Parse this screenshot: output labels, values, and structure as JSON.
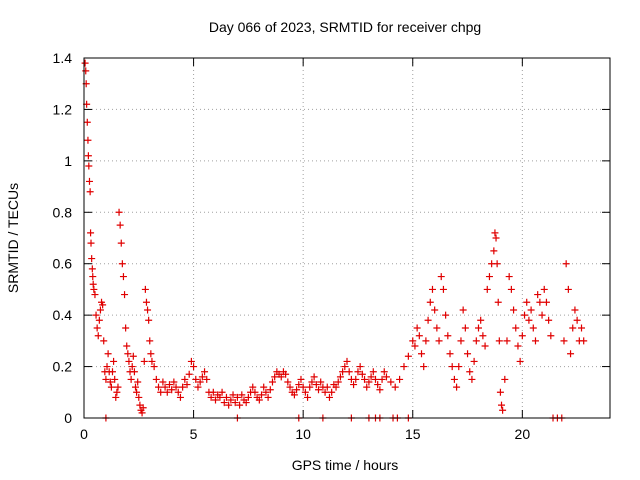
{
  "chart_data": {
    "type": "scatter",
    "title": "Day 066 of 2023, SRMTID for receiver chpg",
    "xlabel": "GPS time / hours",
    "ylabel": "SRMTID / TECUs",
    "xlim": [
      0,
      24
    ],
    "ylim": [
      0,
      1.4
    ],
    "xticks": [
      0,
      5,
      10,
      15,
      20
    ],
    "yticks": [
      0,
      0.2,
      0.4,
      0.6,
      0.8,
      1,
      1.2,
      1.4
    ],
    "xtick_labels": [
      "0",
      "5",
      "10",
      "15",
      "20"
    ],
    "ytick_labels": [
      "0",
      "0.2",
      "0.4",
      "0.6",
      "0.8",
      "1",
      "1.2",
      "1.4"
    ],
    "grid": true,
    "marker": "+",
    "color": "#e00000",
    "series": [
      {
        "name": "SRMTID",
        "points": [
          [
            0.05,
            1.38
          ],
          [
            0.08,
            1.35
          ],
          [
            0.1,
            1.3
          ],
          [
            0.12,
            1.22
          ],
          [
            0.15,
            1.15
          ],
          [
            0.18,
            1.08
          ],
          [
            0.2,
            1.02
          ],
          [
            0.22,
            0.98
          ],
          [
            0.25,
            0.92
          ],
          [
            0.28,
            0.88
          ],
          [
            0.3,
            0.72
          ],
          [
            0.32,
            0.68
          ],
          [
            0.35,
            0.62
          ],
          [
            0.38,
            0.58
          ],
          [
            0.4,
            0.55
          ],
          [
            0.42,
            0.52
          ],
          [
            0.45,
            0.5
          ],
          [
            0.5,
            0.48
          ],
          [
            0.55,
            0.4
          ],
          [
            0.6,
            0.35
          ],
          [
            0.65,
            0.32
          ],
          [
            0.7,
            0.38
          ],
          [
            0.75,
            0.42
          ],
          [
            0.8,
            0.45
          ],
          [
            0.85,
            0.44
          ],
          [
            0.9,
            0.3
          ],
          [
            0.95,
            0.18
          ],
          [
            1.0,
            0.15
          ],
          [
            1.05,
            0.2
          ],
          [
            1.1,
            0.25
          ],
          [
            1.15,
            0.18
          ],
          [
            1.2,
            0.14
          ],
          [
            1.25,
            0.12
          ],
          [
            1.3,
            0.18
          ],
          [
            1.35,
            0.22
          ],
          [
            1.4,
            0.15
          ],
          [
            1.45,
            0.08
          ],
          [
            1.5,
            0.1
          ],
          [
            1.55,
            0.12
          ],
          [
            1.6,
            0.8
          ],
          [
            1.65,
            0.75
          ],
          [
            1.7,
            0.68
          ],
          [
            1.75,
            0.6
          ],
          [
            1.8,
            0.55
          ],
          [
            1.85,
            0.48
          ],
          [
            1.9,
            0.35
          ],
          [
            1.95,
            0.28
          ],
          [
            2.0,
            0.25
          ],
          [
            2.05,
            0.22
          ],
          [
            2.1,
            0.18
          ],
          [
            2.15,
            0.15
          ],
          [
            2.2,
            0.2
          ],
          [
            2.25,
            0.24
          ],
          [
            2.3,
            0.18
          ],
          [
            2.35,
            0.12
          ],
          [
            2.4,
            0.1
          ],
          [
            2.45,
            0.14
          ],
          [
            2.5,
            0.08
          ],
          [
            2.55,
            0.05
          ],
          [
            2.6,
            0.03
          ],
          [
            2.65,
            0.02
          ],
          [
            2.7,
            0.04
          ],
          [
            2.75,
            0.22
          ],
          [
            2.8,
            0.5
          ],
          [
            2.85,
            0.45
          ],
          [
            2.9,
            0.42
          ],
          [
            2.95,
            0.38
          ],
          [
            3.0,
            0.3
          ],
          [
            3.05,
            0.25
          ],
          [
            3.1,
            0.22
          ],
          [
            3.2,
            0.2
          ],
          [
            3.3,
            0.15
          ],
          [
            3.4,
            0.12
          ],
          [
            3.5,
            0.1
          ],
          [
            3.6,
            0.14
          ],
          [
            3.7,
            0.12
          ],
          [
            3.8,
            0.1
          ],
          [
            3.9,
            0.13
          ],
          [
            4.0,
            0.11
          ],
          [
            4.1,
            0.14
          ],
          [
            4.2,
            0.12
          ],
          [
            4.3,
            0.1
          ],
          [
            4.4,
            0.08
          ],
          [
            4.5,
            0.12
          ],
          [
            4.6,
            0.15
          ],
          [
            4.7,
            0.13
          ],
          [
            4.8,
            0.17
          ],
          [
            4.9,
            0.22
          ],
          [
            5.0,
            0.2
          ],
          [
            5.1,
            0.15
          ],
          [
            5.2,
            0.12
          ],
          [
            5.3,
            0.14
          ],
          [
            5.4,
            0.16
          ],
          [
            5.5,
            0.18
          ],
          [
            5.6,
            0.15
          ],
          [
            5.7,
            0.1
          ],
          [
            5.8,
            0.08
          ],
          [
            5.9,
            0.1
          ],
          [
            6.0,
            0.07
          ],
          [
            6.1,
            0.09
          ],
          [
            6.2,
            0.08
          ],
          [
            6.3,
            0.1
          ],
          [
            6.4,
            0.06
          ],
          [
            6.5,
            0.08
          ],
          [
            6.6,
            0.05
          ],
          [
            6.7,
            0.07
          ],
          [
            6.8,
            0.09
          ],
          [
            6.9,
            0.06
          ],
          [
            7.0,
            0.08
          ],
          [
            7.1,
            0.05
          ],
          [
            7.2,
            0.09
          ],
          [
            7.3,
            0.07
          ],
          [
            7.4,
            0.06
          ],
          [
            7.5,
            0.08
          ],
          [
            7.6,
            0.1
          ],
          [
            7.7,
            0.12
          ],
          [
            7.8,
            0.1
          ],
          [
            7.9,
            0.08
          ],
          [
            8.0,
            0.07
          ],
          [
            8.1,
            0.09
          ],
          [
            8.2,
            0.12
          ],
          [
            8.3,
            0.1
          ],
          [
            8.4,
            0.08
          ],
          [
            8.5,
            0.11
          ],
          [
            8.6,
            0.14
          ],
          [
            8.7,
            0.16
          ],
          [
            8.8,
            0.18
          ],
          [
            8.9,
            0.17
          ],
          [
            9.0,
            0.16
          ],
          [
            9.1,
            0.18
          ],
          [
            9.2,
            0.17
          ],
          [
            9.3,
            0.14
          ],
          [
            9.4,
            0.12
          ],
          [
            9.5,
            0.1
          ],
          [
            9.6,
            0.09
          ],
          [
            9.7,
            0.11
          ],
          [
            9.8,
            0.13
          ],
          [
            9.9,
            0.15
          ],
          [
            10.0,
            0.12
          ],
          [
            10.1,
            0.1
          ],
          [
            10.2,
            0.08
          ],
          [
            10.3,
            0.12
          ],
          [
            10.4,
            0.14
          ],
          [
            10.5,
            0.16
          ],
          [
            10.6,
            0.13
          ],
          [
            10.7,
            0.11
          ],
          [
            10.8,
            0.14
          ],
          [
            10.9,
            0.12
          ],
          [
            11.0,
            0.1
          ],
          [
            11.1,
            0.12
          ],
          [
            11.2,
            0.08
          ],
          [
            11.3,
            0.1
          ],
          [
            11.4,
            0.13
          ],
          [
            11.5,
            0.12
          ],
          [
            11.6,
            0.14
          ],
          [
            11.7,
            0.16
          ],
          [
            11.8,
            0.18
          ],
          [
            11.9,
            0.2
          ],
          [
            12.0,
            0.22
          ],
          [
            12.1,
            0.18
          ],
          [
            12.2,
            0.15
          ],
          [
            12.3,
            0.13
          ],
          [
            12.4,
            0.15
          ],
          [
            12.5,
            0.18
          ],
          [
            12.6,
            0.2
          ],
          [
            12.7,
            0.17
          ],
          [
            12.8,
            0.15
          ],
          [
            12.9,
            0.12
          ],
          [
            13.0,
            0.14
          ],
          [
            13.1,
            0.16
          ],
          [
            13.2,
            0.18
          ],
          [
            13.3,
            0.15
          ],
          [
            13.4,
            0.13
          ],
          [
            13.5,
            0.11
          ],
          [
            13.6,
            0.15
          ],
          [
            13.7,
            0.18
          ],
          [
            13.8,
            0.16
          ],
          [
            14.0,
            0.14
          ],
          [
            14.2,
            0.12
          ],
          [
            14.4,
            0.15
          ],
          [
            14.6,
            0.2
          ],
          [
            14.8,
            0.24
          ],
          [
            15.0,
            0.3
          ],
          [
            15.1,
            0.28
          ],
          [
            15.2,
            0.35
          ],
          [
            15.3,
            0.32
          ],
          [
            15.4,
            0.25
          ],
          [
            15.5,
            0.2
          ],
          [
            15.6,
            0.3
          ],
          [
            15.7,
            0.38
          ],
          [
            15.8,
            0.45
          ],
          [
            15.9,
            0.5
          ],
          [
            16.0,
            0.42
          ],
          [
            16.1,
            0.35
          ],
          [
            16.2,
            0.3
          ],
          [
            16.3,
            0.55
          ],
          [
            16.4,
            0.5
          ],
          [
            16.5,
            0.4
          ],
          [
            16.6,
            0.32
          ],
          [
            16.7,
            0.25
          ],
          [
            16.8,
            0.2
          ],
          [
            16.9,
            0.15
          ],
          [
            17.0,
            0.12
          ],
          [
            17.1,
            0.2
          ],
          [
            17.2,
            0.3
          ],
          [
            17.3,
            0.42
          ],
          [
            17.4,
            0.35
          ],
          [
            17.5,
            0.25
          ],
          [
            17.6,
            0.18
          ],
          [
            17.7,
            0.15
          ],
          [
            17.8,
            0.22
          ],
          [
            17.9,
            0.3
          ],
          [
            18.0,
            0.35
          ],
          [
            18.1,
            0.38
          ],
          [
            18.2,
            0.32
          ],
          [
            18.3,
            0.28
          ],
          [
            18.4,
            0.5
          ],
          [
            18.5,
            0.55
          ],
          [
            18.6,
            0.6
          ],
          [
            18.7,
            0.65
          ],
          [
            18.75,
            0.72
          ],
          [
            18.8,
            0.7
          ],
          [
            18.85,
            0.6
          ],
          [
            18.9,
            0.45
          ],
          [
            18.95,
            0.3
          ],
          [
            19.0,
            0.1
          ],
          [
            19.05,
            0.05
          ],
          [
            19.1,
            0.03
          ],
          [
            19.2,
            0.15
          ],
          [
            19.3,
            0.3
          ],
          [
            19.4,
            0.55
          ],
          [
            19.5,
            0.5
          ],
          [
            19.6,
            0.42
          ],
          [
            19.7,
            0.35
          ],
          [
            19.8,
            0.28
          ],
          [
            19.9,
            0.22
          ],
          [
            20.0,
            0.32
          ],
          [
            20.1,
            0.4
          ],
          [
            20.2,
            0.45
          ],
          [
            20.3,
            0.38
          ],
          [
            20.4,
            0.42
          ],
          [
            20.5,
            0.35
          ],
          [
            20.6,
            0.3
          ],
          [
            20.7,
            0.48
          ],
          [
            20.8,
            0.45
          ],
          [
            20.9,
            0.4
          ],
          [
            21.0,
            0.5
          ],
          [
            21.1,
            0.45
          ],
          [
            21.2,
            0.38
          ],
          [
            21.3,
            0.32
          ],
          [
            21.9,
            0.3
          ],
          [
            22.0,
            0.6
          ],
          [
            22.1,
            0.5
          ],
          [
            22.2,
            0.25
          ],
          [
            22.3,
            0.35
          ],
          [
            22.4,
            0.42
          ],
          [
            22.5,
            0.38
          ],
          [
            22.6,
            0.3
          ],
          [
            22.7,
            0.35
          ],
          [
            22.8,
            0.3
          ],
          [
            1.0,
            0
          ],
          [
            7.0,
            0
          ],
          [
            9.8,
            0
          ],
          [
            10.9,
            0
          ],
          [
            12.2,
            0
          ],
          [
            13.0,
            0
          ],
          [
            13.3,
            0
          ],
          [
            13.5,
            0
          ],
          [
            14.1,
            0
          ],
          [
            14.3,
            0
          ],
          [
            14.8,
            0
          ],
          [
            21.4,
            0
          ],
          [
            21.6,
            0
          ],
          [
            21.8,
            0
          ]
        ]
      }
    ]
  }
}
